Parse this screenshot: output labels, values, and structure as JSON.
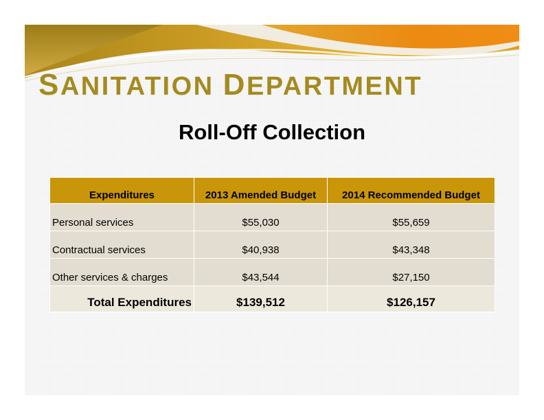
{
  "header": {
    "title_first": "S",
    "title_rest_1": "ANITATION ",
    "title_d": "D",
    "title_rest_2": "EPARTMENT",
    "subtitle": "Roll-Off Collection"
  },
  "table": {
    "headers": [
      "Expenditures",
      "2013 Amended Budget",
      "2014 Recommended Budget"
    ],
    "rows": [
      {
        "label": "Personal services",
        "amended_2013": "$55,030",
        "recommended_2014": "$55,659"
      },
      {
        "label": "Contractual services",
        "amended_2013": "$40,938",
        "recommended_2014": "$43,348"
      },
      {
        "label": "Other services & charges",
        "amended_2013": "$43,544",
        "recommended_2014": "$27,150"
      }
    ],
    "total": {
      "label": "Total Expenditures",
      "amended_2013": "$139,512",
      "recommended_2014": "$126,157"
    }
  },
  "colors": {
    "title": "#a58a1f",
    "header_fill": "#c9960a",
    "row_fill": "#e2ddd0",
    "swoosh_orange": "#e8901c",
    "swoosh_gold": "#c9a227"
  }
}
